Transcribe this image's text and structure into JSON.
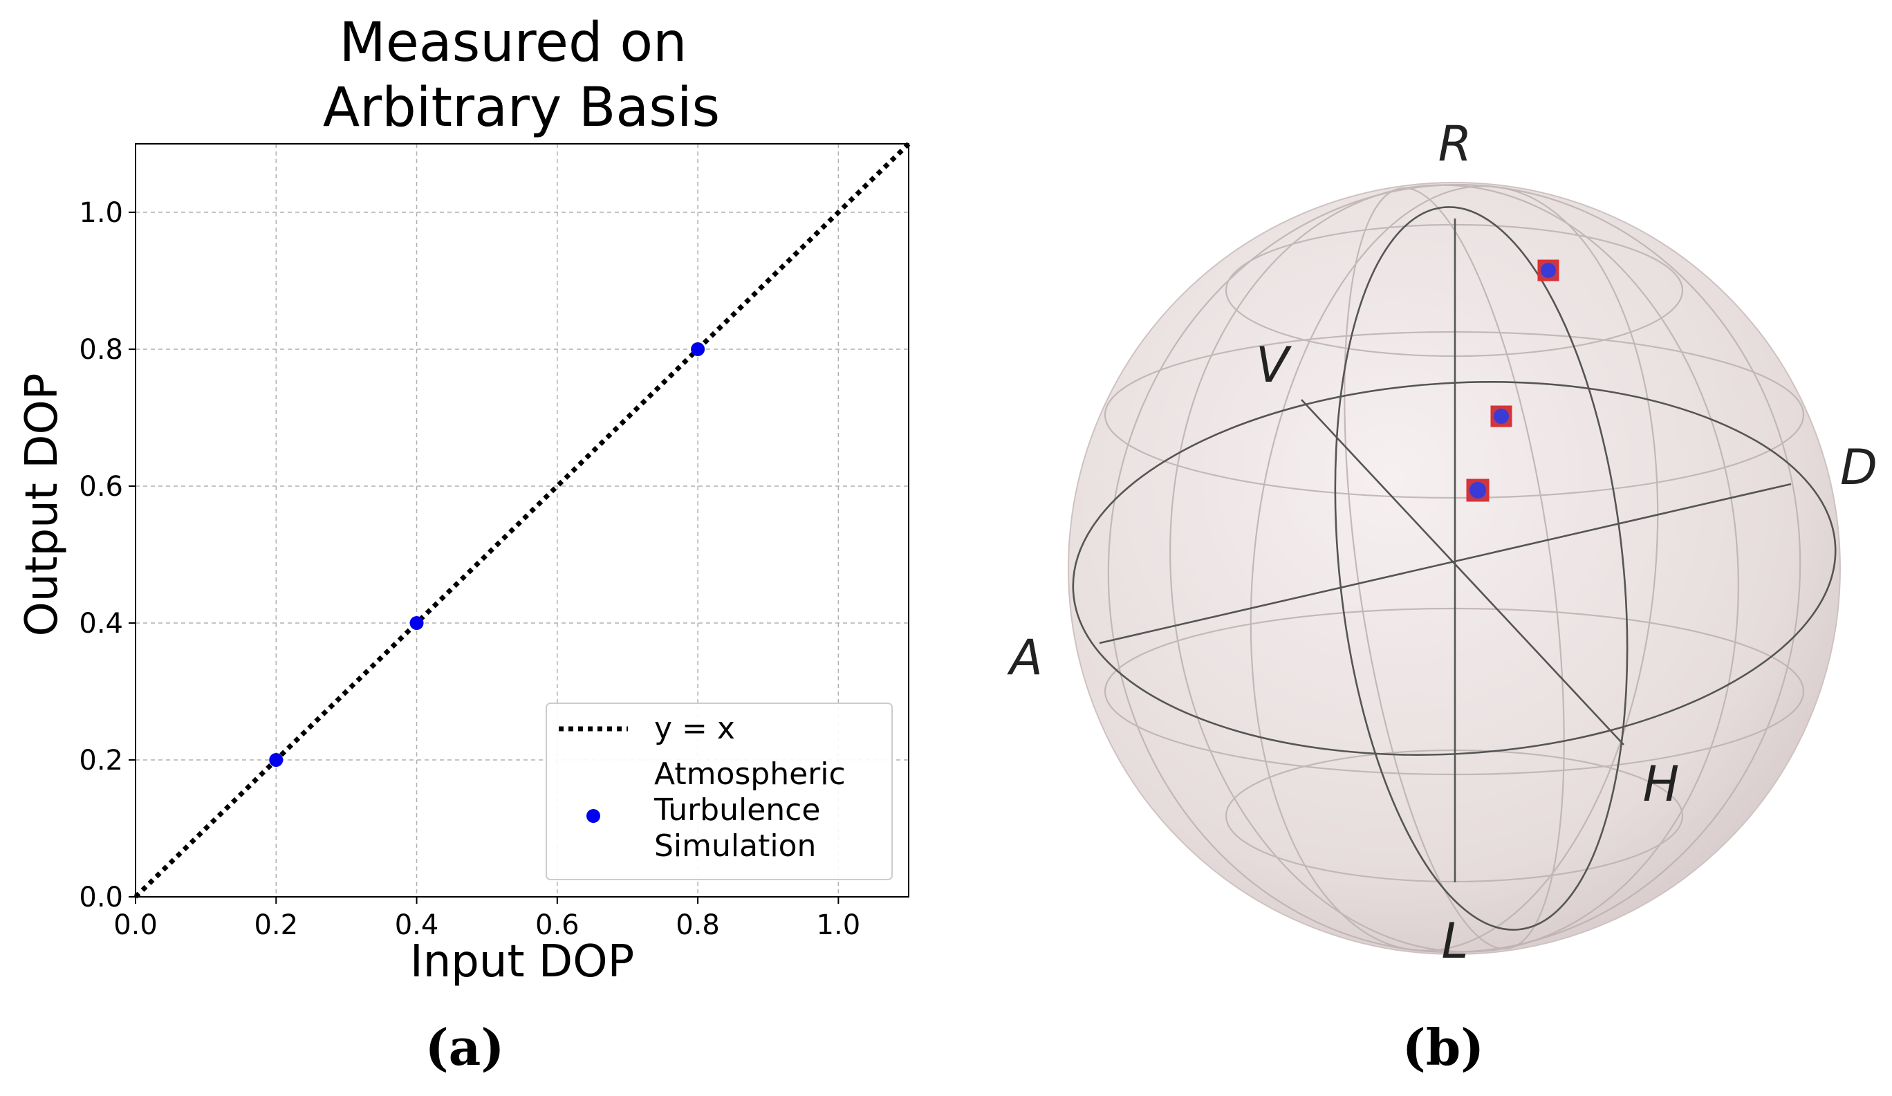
{
  "chart_data": [
    {
      "type": "scatter",
      "title_lines": [
        "Measured on",
        "Arbitrary Basis"
      ],
      "xlabel": "Input DOP",
      "ylabel": "Output DOP",
      "xlim": [
        0,
        1.1
      ],
      "ylim": [
        0,
        1.1
      ],
      "xticks": [
        0.0,
        0.2,
        0.4,
        0.6,
        0.8,
        1.0
      ],
      "yticks": [
        0.0,
        0.2,
        0.4,
        0.6,
        0.8,
        1.0
      ],
      "xtick_labels": [
        "0.0",
        "0.2",
        "0.4",
        "0.6",
        "0.8",
        "1.0"
      ],
      "ytick_labels": [
        "0.0",
        "0.2",
        "0.4",
        "0.6",
        "0.8",
        "1.0"
      ],
      "grid": true,
      "legend_position": "lower-right",
      "series": [
        {
          "name": "y = x",
          "kind": "dotted-line",
          "color": "#000000",
          "x": [
            0,
            1.1
          ],
          "y": [
            0,
            1.1
          ]
        },
        {
          "name": "Atmospheric Turbulence Simulation",
          "legend_lines": [
            "Atmospheric",
            "Turbulence",
            "Simulation"
          ],
          "kind": "points",
          "color": "#0000ee",
          "x": [
            0.2,
            0.4,
            0.8
          ],
          "y": [
            0.2,
            0.4,
            0.8
          ]
        }
      ],
      "caption": "(a)"
    },
    {
      "type": "other",
      "description_type": "poincare-sphere",
      "axis_labels": {
        "top": "R",
        "bottom": "L",
        "left": "A",
        "right": "D",
        "back": "V",
        "front": "H"
      },
      "marker_colors": {
        "fill": "#3a3ad6",
        "edge": "#dd3030"
      },
      "marker_count": 3,
      "caption": "(b)"
    }
  ]
}
